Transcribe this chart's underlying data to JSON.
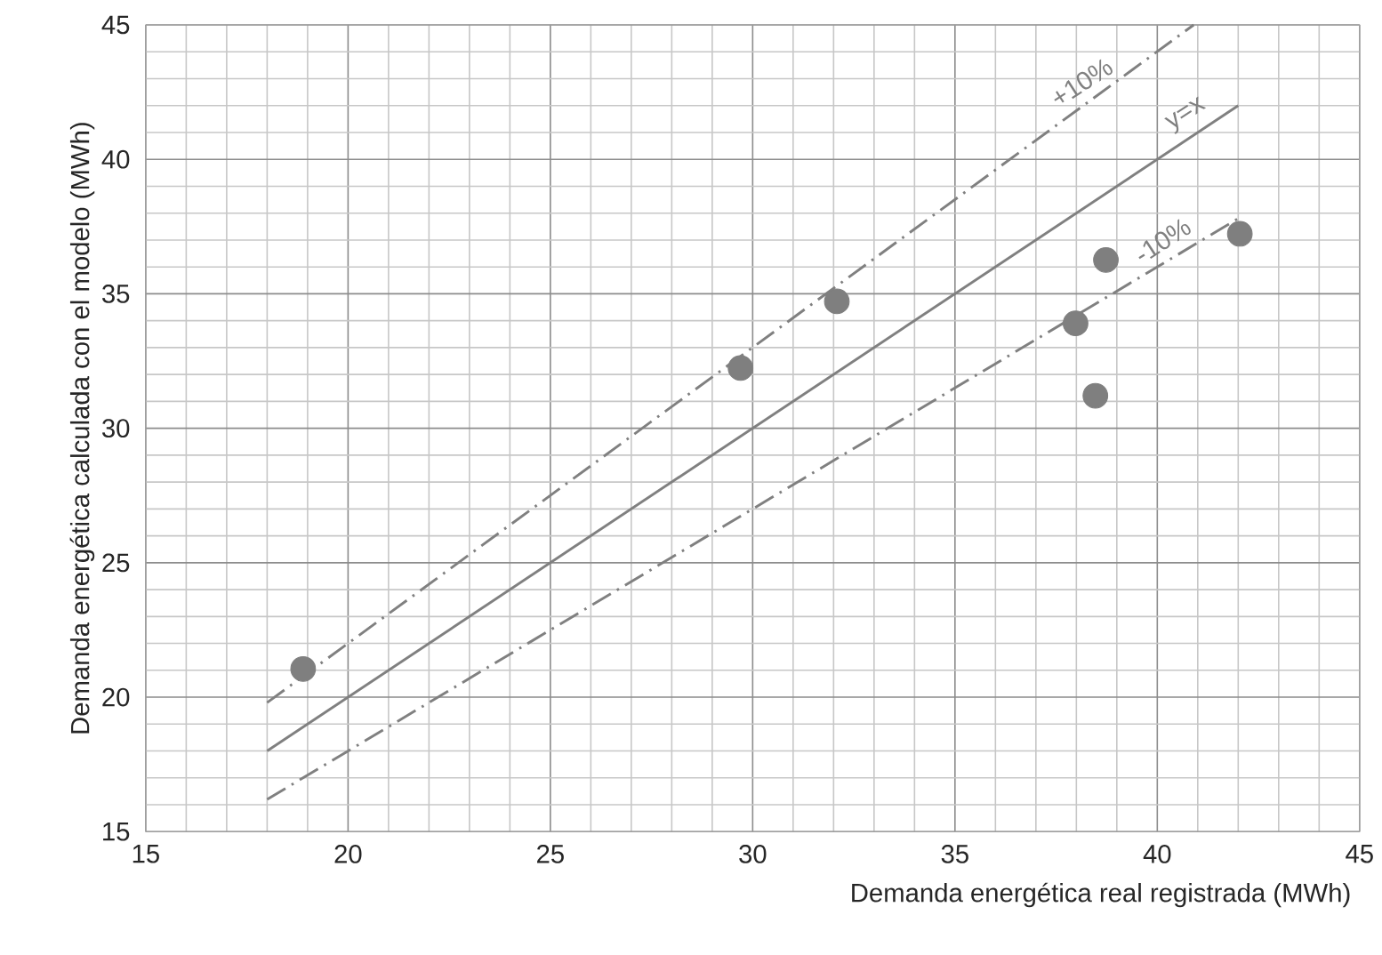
{
  "chart_data": {
    "type": "scatter",
    "xlabel": "Demanda energética real registrada (MWh)",
    "ylabel": "Demanda energética calculada con el modelo (MWh)",
    "xlim": [
      15,
      45
    ],
    "ylim": [
      15,
      45
    ],
    "xticks": [
      15,
      20,
      25,
      30,
      35,
      40,
      45
    ],
    "yticks": [
      15,
      20,
      25,
      30,
      35,
      40,
      45
    ],
    "grid": true,
    "series": [
      {
        "marker": "circle",
        "color": "#7f7f7f",
        "x": [
          18.89,
          29.7,
          32.08,
          37.98,
          38.73,
          38.47,
          42.04
        ],
        "values": [
          21.05,
          32.24,
          34.72,
          33.9,
          36.26,
          31.21,
          37.23
        ]
      },
      {
        "type": "line",
        "marker": "none",
        "color": "#808080",
        "line_style": "solid",
        "x": [
          18,
          42
        ],
        "values": [
          18,
          42
        ]
      },
      {
        "type": "line",
        "marker": "none",
        "color": "#808080",
        "line_style": "dashdot",
        "x": [
          18,
          40.9
        ],
        "values": [
          19.8,
          45
        ]
      },
      {
        "type": "line",
        "marker": "none",
        "color": "#808080",
        "line_style": "dashdot",
        "x": [
          18,
          42
        ],
        "values": [
          16.2,
          37.8
        ]
      }
    ],
    "annotations": [
      {
        "text": "+10%",
        "x": 38.4,
        "y": 42.24
      },
      {
        "text": "y=x",
        "x": 41,
        "y": 41
      },
      {
        "text": "-10%",
        "x": 40.4,
        "y": 36.36
      }
    ]
  }
}
